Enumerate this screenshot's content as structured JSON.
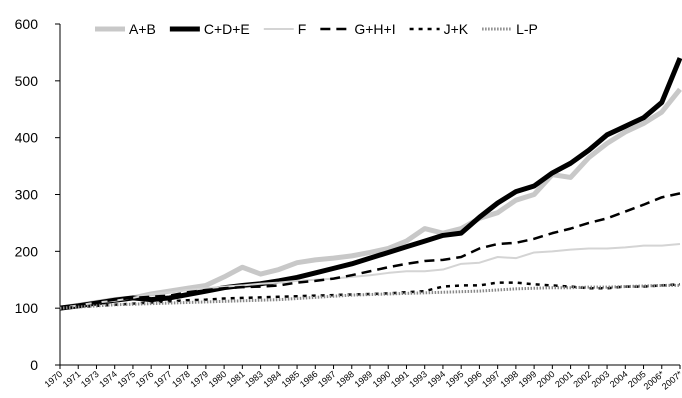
{
  "chart_data": {
    "type": "line",
    "categories": [
      "1970",
      "1971",
      "1973",
      "1974",
      "1975",
      "1976",
      "1977",
      "1978",
      "1979",
      "1980",
      "1981",
      "1983",
      "1984",
      "1985",
      "1986",
      "1987",
      "1988",
      "1989",
      "1990",
      "1991",
      "1993",
      "1994",
      "1995",
      "1996",
      "1997",
      "1998",
      "1999",
      "2000",
      "2001",
      "2002",
      "2003",
      "2004",
      "2005",
      "2006*",
      "2007*"
    ],
    "series": [
      {
        "name": "A+B",
        "color": "#c8c8c8",
        "style": "thick",
        "values": [
          100,
          105,
          110,
          115,
          118,
          125,
          130,
          135,
          140,
          155,
          172,
          160,
          168,
          180,
          185,
          188,
          192,
          198,
          205,
          218,
          240,
          232,
          240,
          258,
          268,
          290,
          300,
          335,
          330,
          365,
          390,
          410,
          425,
          445,
          485
        ]
      },
      {
        "name": "C+D+E",
        "color": "#000000",
        "style": "thick",
        "values": [
          100,
          104,
          109,
          114,
          118,
          115,
          118,
          124,
          130,
          136,
          140,
          143,
          148,
          154,
          162,
          170,
          178,
          188,
          198,
          208,
          218,
          228,
          232,
          260,
          285,
          305,
          315,
          338,
          355,
          378,
          405,
          420,
          435,
          462,
          540
        ]
      },
      {
        "name": "F",
        "color": "#d4d4d4",
        "style": "solid",
        "values": [
          100,
          105,
          110,
          113,
          118,
          125,
          128,
          132,
          135,
          138,
          140,
          143,
          145,
          148,
          150,
          152,
          155,
          158,
          162,
          165,
          165,
          168,
          178,
          180,
          190,
          188,
          198,
          200,
          203,
          205,
          205,
          207,
          210,
          210,
          213
        ]
      },
      {
        "name": "G+H+I",
        "color": "#000000",
        "style": "dashed",
        "values": [
          100,
          105,
          110,
          115,
          118,
          120,
          122,
          128,
          132,
          135,
          137,
          138,
          140,
          145,
          148,
          152,
          158,
          165,
          172,
          178,
          183,
          185,
          190,
          205,
          213,
          215,
          222,
          232,
          240,
          250,
          258,
          270,
          282,
          295,
          302
        ]
      },
      {
        "name": "J+K",
        "color": "#000000",
        "style": "dotted",
        "values": [
          100,
          102,
          104,
          106,
          108,
          110,
          112,
          114,
          115,
          117,
          118,
          119,
          120,
          121,
          122,
          123,
          124,
          125,
          126,
          128,
          130,
          138,
          140,
          140,
          145,
          145,
          142,
          140,
          138,
          135,
          135,
          138,
          138,
          140,
          142
        ]
      },
      {
        "name": "L-P",
        "color": "#888888",
        "style": "fine-dotted",
        "values": [
          100,
          102,
          104,
          106,
          107,
          108,
          109,
          110,
          111,
          112,
          113,
          114,
          115,
          117,
          119,
          121,
          123,
          124,
          125,
          126,
          127,
          128,
          129,
          130,
          132,
          134,
          135,
          136,
          136,
          137,
          137,
          138,
          139,
          140,
          140
        ]
      }
    ],
    "ylim": [
      0,
      600
    ],
    "yticks": [
      0,
      100,
      200,
      300,
      400,
      500,
      600
    ],
    "legend": "top"
  }
}
